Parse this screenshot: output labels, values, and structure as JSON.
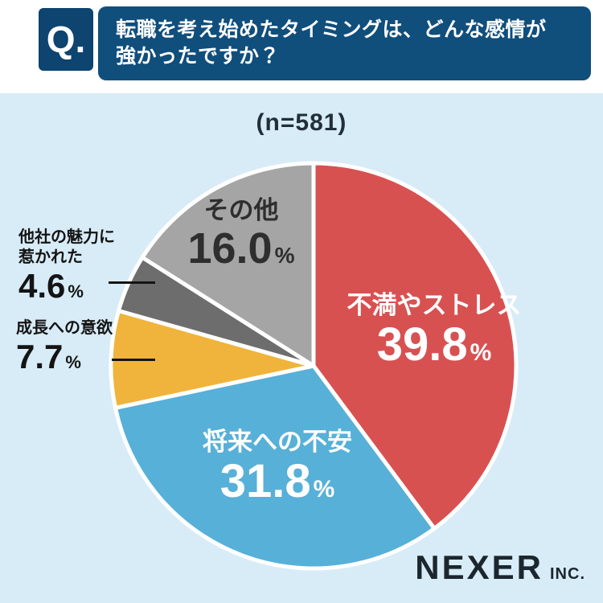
{
  "header": {
    "q_label": "Q.",
    "question_line1": "転職を考え始めたタイミングは、どんな感情が",
    "question_line2": "強かったですか？"
  },
  "sample_size": "(n=581)",
  "chart_data": {
    "type": "pie",
    "title": "転職を考え始めたタイミングは、どんな感情が強かったですか？",
    "sample_label": "(n=581)",
    "start_angle_deg": -90,
    "direction": "clockwise",
    "slices": [
      {
        "label": "不満やストレス",
        "value": 39.8,
        "display_value": "39.8",
        "unit": "%",
        "color": "#d85151",
        "label_position": "inside"
      },
      {
        "label": "将来への不安",
        "value": 31.8,
        "display_value": "31.8",
        "unit": "%",
        "color": "#57b0d8",
        "label_position": "inside"
      },
      {
        "label": "成長への意欲",
        "value": 7.7,
        "display_value": "7.7",
        "unit": "%",
        "color": "#f0b43c",
        "label_position": "outside-left"
      },
      {
        "label": "他社の魅力に惹かれた",
        "value": 4.6,
        "display_value": "4.6",
        "unit": "%",
        "color": "#6d6d6d",
        "label_position": "outside-left"
      },
      {
        "label": "その他",
        "value": 16.0,
        "display_value": "16.0",
        "unit": "%",
        "color": "#a5a5a5",
        "label_position": "inside"
      }
    ]
  },
  "footer": {
    "brand": "NEXER",
    "brand_suffix": "INC."
  }
}
